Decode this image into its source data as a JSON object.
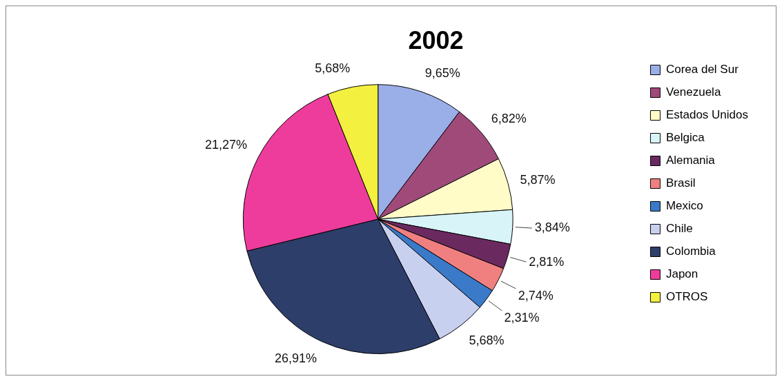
{
  "chart_data": {
    "type": "pie",
    "title": "2002",
    "categories": [
      "Corea del Sur",
      "Venezuela",
      "Estados Unidos",
      "Belgica",
      "Alemania",
      "Brasil",
      "Mexico",
      "Chile",
      "Colombia",
      "Japon",
      "OTROS"
    ],
    "values": [
      9.65,
      6.82,
      5.87,
      3.84,
      2.81,
      2.74,
      2.31,
      5.68,
      26.91,
      21.27,
      5.68
    ],
    "value_labels": [
      "9,65%",
      "6,82%",
      "5,87%",
      "3,84%",
      "2,81%",
      "2,74%",
      "2,31%",
      "5,68%",
      "26,91%",
      "21,27%",
      "5,68%"
    ],
    "colors": [
      "#9aaee8",
      "#a04a7a",
      "#fffcc8",
      "#d8f4f8",
      "#6a2a60",
      "#f08080",
      "#3a7ac8",
      "#c8d0f0",
      "#2e3e6a",
      "#ee3c9c",
      "#f4f040"
    ],
    "legend": "right"
  }
}
